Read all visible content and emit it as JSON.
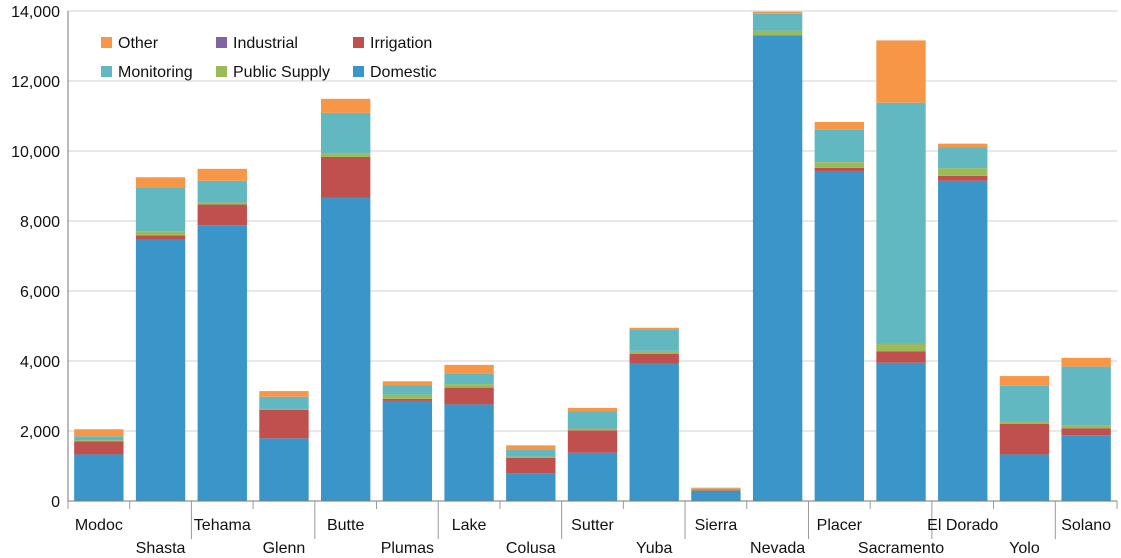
{
  "chart_data": {
    "type": "bar",
    "stacked": true,
    "categories": [
      "Modoc",
      "Shasta",
      "Tehama",
      "Glenn",
      "Butte",
      "Plumas",
      "Lake",
      "Colusa",
      "Sutter",
      "Yuba",
      "Sierra",
      "Nevada",
      "Placer",
      "Sacramento",
      "El Dorado",
      "Yolo",
      "Solano"
    ],
    "series": [
      {
        "name": "Domestic",
        "color": "#3a96c9",
        "values": [
          1330,
          7470,
          7880,
          1790,
          8660,
          2860,
          2760,
          790,
          1380,
          3930,
          270,
          13300,
          9430,
          3950,
          9150,
          1330,
          1880
        ]
      },
      {
        "name": "Irrigation",
        "color": "#c0504d",
        "values": [
          370,
          120,
          590,
          810,
          1170,
          60,
          480,
          440,
          640,
          270,
          30,
          0,
          90,
          330,
          140,
          870,
          200
        ]
      },
      {
        "name": "Industrial",
        "color": "#8064a2",
        "values": [
          0,
          0,
          0,
          0,
          0,
          0,
          0,
          0,
          0,
          0,
          0,
          0,
          0,
          0,
          0,
          0,
          0
        ]
      },
      {
        "name": "Public Supply",
        "color": "#9bbb59",
        "values": [
          40,
          120,
          60,
          30,
          110,
          120,
          100,
          40,
          50,
          90,
          10,
          140,
          160,
          220,
          220,
          70,
          70
        ]
      },
      {
        "name": "Monitoring",
        "color": "#62b8c1",
        "values": [
          110,
          1250,
          620,
          350,
          1150,
          260,
          310,
          210,
          500,
          620,
          40,
          480,
          930,
          6880,
          590,
          1020,
          1690
        ]
      },
      {
        "name": "Other",
        "color": "#f79646",
        "values": [
          200,
          290,
          340,
          160,
          400,
          120,
          240,
          110,
          90,
          40,
          30,
          60,
          220,
          1780,
          110,
          280,
          250
        ]
      }
    ],
    "ylim": [
      0,
      14000
    ],
    "yticks": [
      0,
      2000,
      4000,
      6000,
      8000,
      10000,
      12000,
      14000
    ],
    "ytick_labels": [
      "0",
      "2,000",
      "4,000",
      "6,000",
      "8,000",
      "10,000",
      "12,000",
      "14,000"
    ],
    "grid": true,
    "legend_position": "top-left",
    "legend_order": [
      "Other",
      "Industrial",
      "Irrigation",
      "Monitoring",
      "Public Supply",
      "Domestic"
    ],
    "title": "",
    "xlabel": "",
    "ylabel": ""
  }
}
